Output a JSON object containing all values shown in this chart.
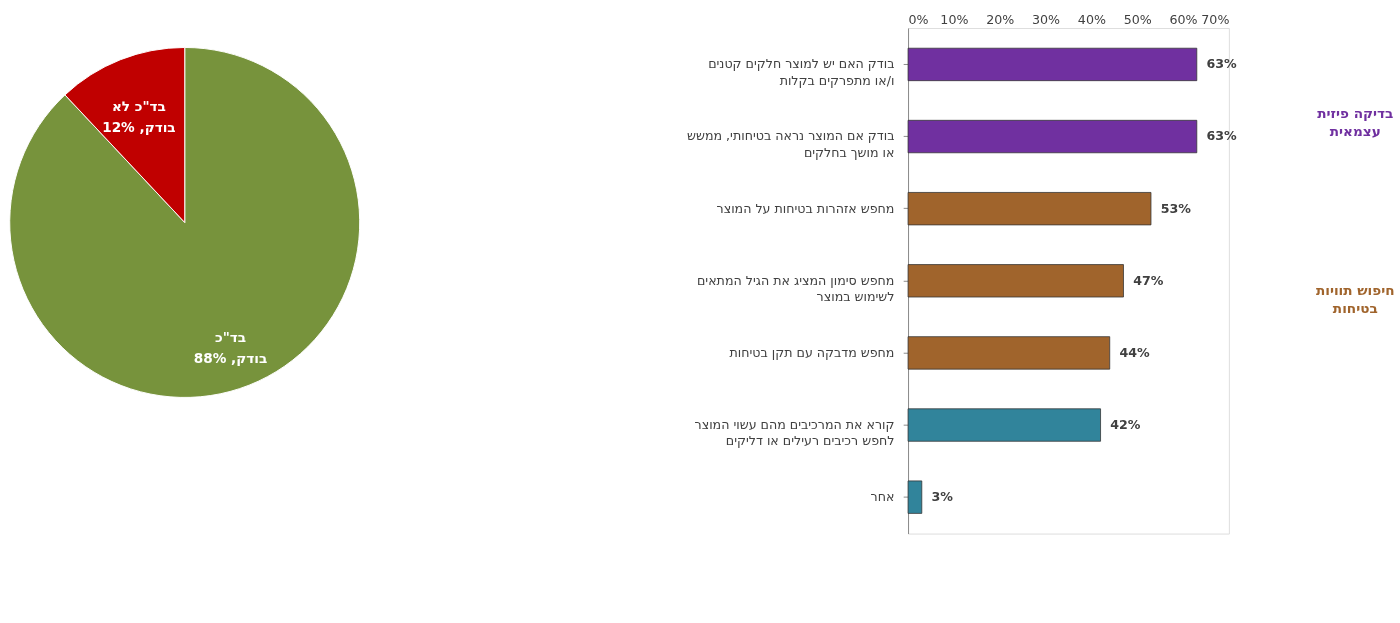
{
  "chart_data": [
    {
      "type": "pie",
      "categories": [
        "בד\"כ בודק",
        "בד\"כ לא בודק"
      ],
      "values": [
        88,
        12
      ],
      "colors": [
        "#77933c",
        "#c00000"
      ],
      "value_labels": [
        "88%",
        "12%"
      ],
      "legend": false
    },
    {
      "type": "bar",
      "orientation": "horizontal",
      "categories": [
        "בודק האם יש למוצר חלקים קטנים ו/או מתפרקים בקלות",
        "בודק אם המוצר נראה בטיחותי, ממשש או מושך בחלקים",
        "מחפש אזהרות בטיחות על המוצר",
        "מחפש סימון המציג את הגיל המתאים לשימוש במוצר",
        "מחפש מדבקה עם תקן בטיחות",
        "קורא את המרכיבים מהם עשוי המוצר לחפש רכיבים רעילים או דליקים",
        "אחר"
      ],
      "values": [
        63,
        63,
        53,
        47,
        44,
        42,
        3
      ],
      "colors": [
        "#7030a0",
        "#7030a0",
        "#a0642c",
        "#a0642c",
        "#a0642c",
        "#31849b",
        "#31849b"
      ],
      "xlim": [
        0,
        70
      ],
      "xticks": [
        {
          "value": 0,
          "label": "0%"
        },
        {
          "value": 10,
          "label": "10%"
        },
        {
          "value": 20,
          "label": "20%"
        },
        {
          "value": 30,
          "label": "30%"
        },
        {
          "value": 40,
          "label": "40%"
        },
        {
          "value": 50,
          "label": "50%"
        },
        {
          "value": 60,
          "label": "60%"
        },
        {
          "value": 70,
          "label": "70%"
        }
      ],
      "value_labels": [
        "63%",
        "63%",
        "53%",
        "47%",
        "44%",
        "42%",
        "3%"
      ],
      "annotations": [
        "בדיקה פיזית עצמאית",
        "חיפוש תוויות בטיחות"
      ],
      "grid": false,
      "legend": false
    }
  ]
}
